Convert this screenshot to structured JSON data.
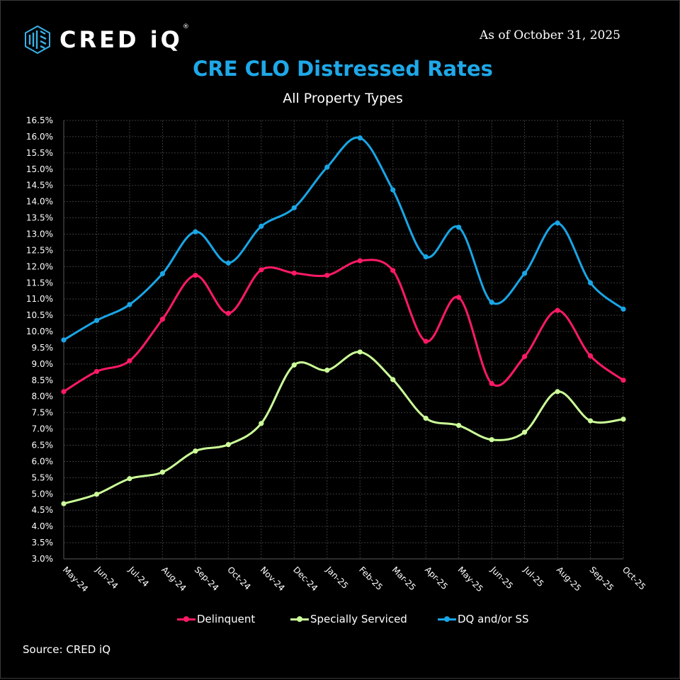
{
  "header": {
    "logo_text": "CRED iQ",
    "logo_mark": "®",
    "as_of": "As of October 31, 2025"
  },
  "footer": {
    "source": "Source:  CRED iQ"
  },
  "chart_data": {
    "type": "line",
    "title": "CRE CLO Distressed Rates",
    "subtitle": "All Property Types",
    "xlabel": "",
    "ylabel": "",
    "ylim": [
      3.0,
      16.5
    ],
    "y_step": 0.5,
    "y_format": "percent_1dp",
    "grid": true,
    "legend_position": "bottom",
    "categories": [
      "May-24",
      "Jun-24",
      "Jul-24",
      "Aug-24",
      "Sep-24",
      "Oct-24",
      "Nov-24",
      "Dec-24",
      "Jan-25",
      "Feb-25",
      "Mar-25",
      "Apr-25",
      "May-25",
      "Jun-25",
      "Jul-25",
      "Aug-25",
      "Sep-25",
      "Oct-25"
    ],
    "series": [
      {
        "name": "Delinquent",
        "color": "#ff1a66",
        "values": [
          8.15,
          8.77,
          9.1,
          10.38,
          11.73,
          10.56,
          11.9,
          11.8,
          11.73,
          12.18,
          11.88,
          9.7,
          11.05,
          8.4,
          9.23,
          10.65,
          9.25,
          8.5
        ]
      },
      {
        "name": "Specially Serviced",
        "color": "#ccff99",
        "values": [
          4.7,
          4.99,
          5.47,
          5.67,
          6.32,
          6.52,
          7.17,
          8.97,
          8.81,
          9.37,
          8.52,
          7.33,
          7.11,
          6.67,
          6.9,
          8.15,
          7.25,
          7.3
        ]
      },
      {
        "name": "DQ and/or SS",
        "color": "#19a6e6",
        "values": [
          9.74,
          10.34,
          10.83,
          11.78,
          13.07,
          12.11,
          13.24,
          13.81,
          15.06,
          15.96,
          14.36,
          12.3,
          13.21,
          10.9,
          11.79,
          13.34,
          11.5,
          10.69
        ]
      }
    ]
  }
}
